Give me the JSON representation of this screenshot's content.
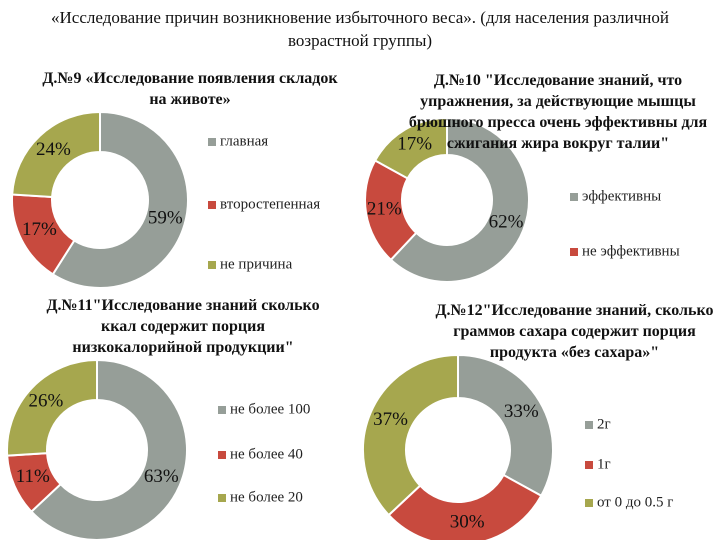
{
  "title": "«Исследование  причин возникновение избыточного веса». (для населения различной возрастной группы)",
  "chart_data": [
    {
      "type": "pie",
      "title": "Д.№9 «Исследование появления складок на животе»",
      "categories": [
        "главная",
        "второстепенная",
        "не причина"
      ],
      "values": [
        59,
        17,
        24
      ],
      "value_labels": [
        "59%",
        "17%",
        "24%"
      ],
      "colors": [
        "#969e98",
        "#c84a3e",
        "#a6a74e"
      ]
    },
    {
      "type": "pie",
      "title": "Д.№10 \"Исследование знаний, что упражнения, за действующие мышцы брюшного пресса очень эффективны для сжигания жира вокруг талии\"",
      "categories": [
        "эффективны",
        "не эффективны",
        null
      ],
      "values": [
        62,
        21,
        17
      ],
      "value_labels": [
        "62%",
        "21%",
        "17%"
      ],
      "colors": [
        "#969e98",
        "#c84a3e",
        "#a6a74e"
      ]
    },
    {
      "type": "pie",
      "title": "Д.№11\"Исследование знаний сколько ккал содержит порция низкокалорийной продукции\"",
      "categories": [
        "не более 100",
        "не более 40",
        "не более 20"
      ],
      "values": [
        63,
        11,
        26
      ],
      "value_labels": [
        "63%",
        "11%",
        "26%"
      ],
      "colors": [
        "#969e98",
        "#c84a3e",
        "#a6a74e"
      ]
    },
    {
      "type": "pie",
      "title": "Д.№12\"Исследование знаний, сколько граммов сахара содержит порция продукта «без сахара»\"",
      "categories": [
        "2г",
        "1г",
        "от 0 до  0.5 г"
      ],
      "values": [
        33,
        30,
        37
      ],
      "value_labels": [
        "33%",
        "30%",
        "37%"
      ],
      "colors": [
        "#969e98",
        "#c84a3e",
        "#a6a74e"
      ]
    }
  ]
}
